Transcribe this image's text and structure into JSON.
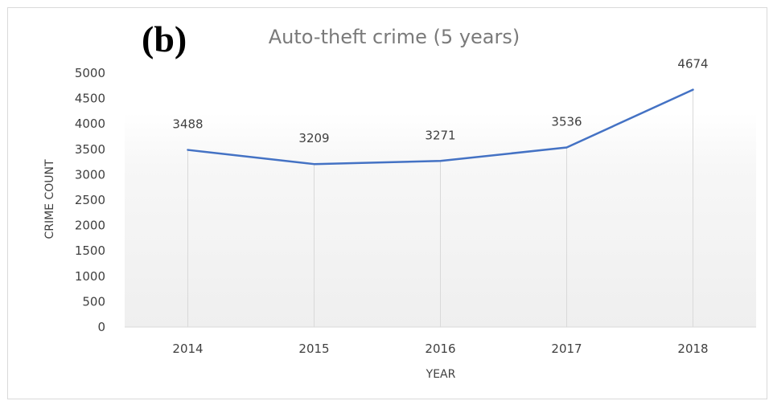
{
  "panel_label": "(b)",
  "chart_data": {
    "type": "line",
    "title": "Auto-theft crime (5 years)",
    "xlabel": "YEAR",
    "ylabel": "CRIME COUNT",
    "categories": [
      "2014",
      "2015",
      "2016",
      "2017",
      "2018"
    ],
    "series": [
      {
        "values": [
          3488,
          3209,
          3271,
          3536,
          4674
        ],
        "color": "#4472c4"
      }
    ],
    "data_labels": [
      "3488",
      "3209",
      "3271",
      "3536",
      "4674"
    ],
    "ylim": [
      0,
      5000
    ],
    "yticks": [
      0,
      500,
      1000,
      1500,
      2000,
      2500,
      3000,
      3500,
      4000,
      4500,
      5000
    ],
    "grid": "vertical category lines",
    "legend": "none"
  }
}
